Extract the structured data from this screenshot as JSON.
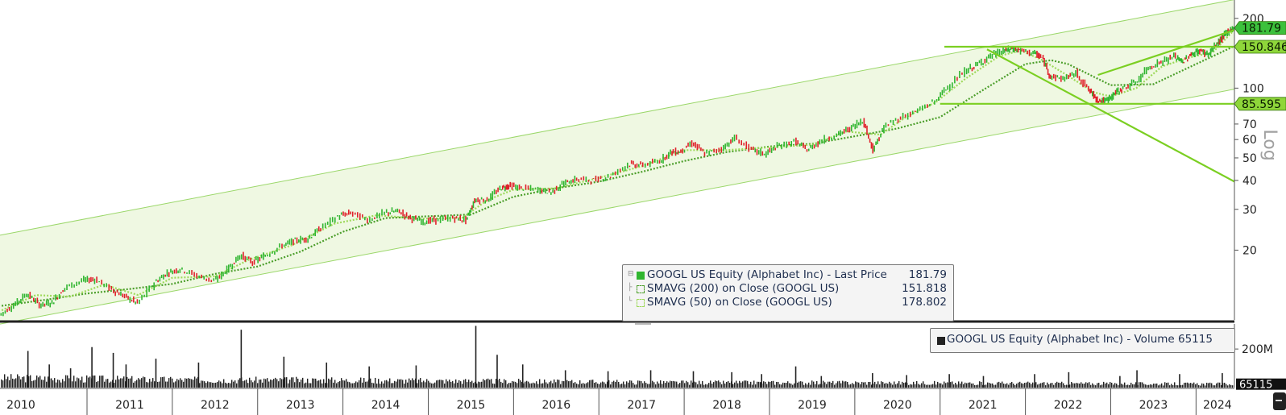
{
  "chart_data": {
    "type": "line",
    "scale": "log",
    "ylim": [
      10,
      240
    ],
    "y_ticks": [
      "200",
      "100",
      "70",
      "60",
      "50",
      "40",
      "30",
      "20"
    ],
    "y_tick_values": [
      200,
      100,
      70,
      60,
      50,
      40,
      30,
      20
    ],
    "axis_label": "Log",
    "x_ticks": [
      "2010",
      "2011",
      "2012",
      "2013",
      "2014",
      "2015",
      "2016",
      "2017",
      "2018",
      "2019",
      "2020",
      "2021",
      "2022",
      "2023",
      "2024"
    ],
    "x_range": [
      2009.98,
      2024.45
    ],
    "series": [
      {
        "name": "GOOGL US Equity (Alphabet Inc) - Last Price",
        "color": "#2fb52f",
        "points": [
          [
            2009.98,
            10.5
          ],
          [
            2010.15,
            11.6
          ],
          [
            2010.3,
            13.0
          ],
          [
            2010.45,
            11.6
          ],
          [
            2010.6,
            11.9
          ],
          [
            2010.75,
            13.8
          ],
          [
            2010.95,
            14.8
          ],
          [
            2011.1,
            15.0
          ],
          [
            2011.3,
            13.5
          ],
          [
            2011.45,
            12.6
          ],
          [
            2011.6,
            11.8
          ],
          [
            2011.8,
            14.5
          ],
          [
            2011.95,
            16.0
          ],
          [
            2012.1,
            16.6
          ],
          [
            2012.3,
            15.5
          ],
          [
            2012.5,
            14.7
          ],
          [
            2012.65,
            16.5
          ],
          [
            2012.8,
            19.0
          ],
          [
            2012.95,
            17.7
          ],
          [
            2013.1,
            19.0
          ],
          [
            2013.3,
            21.0
          ],
          [
            2013.45,
            22.0
          ],
          [
            2013.6,
            22.5
          ],
          [
            2013.75,
            25.0
          ],
          [
            2013.95,
            28.0
          ],
          [
            2014.1,
            29.0
          ],
          [
            2014.3,
            27.0
          ],
          [
            2014.5,
            29.0
          ],
          [
            2014.65,
            29.5
          ],
          [
            2014.8,
            27.5
          ],
          [
            2014.95,
            26.5
          ],
          [
            2015.1,
            27.0
          ],
          [
            2015.3,
            27.5
          ],
          [
            2015.45,
            27.0
          ],
          [
            2015.55,
            33.0
          ],
          [
            2015.7,
            33.0
          ],
          [
            2015.85,
            37.0
          ],
          [
            2015.95,
            38.0
          ],
          [
            2016.1,
            37.0
          ],
          [
            2016.3,
            36.5
          ],
          [
            2016.45,
            35.5
          ],
          [
            2016.6,
            39.0
          ],
          [
            2016.75,
            40.5
          ],
          [
            2016.95,
            40.0
          ],
          [
            2017.15,
            42.0
          ],
          [
            2017.35,
            47.0
          ],
          [
            2017.5,
            46.5
          ],
          [
            2017.7,
            48.0
          ],
          [
            2017.85,
            53.0
          ],
          [
            2017.95,
            53.0
          ],
          [
            2018.1,
            58.0
          ],
          [
            2018.25,
            52.0
          ],
          [
            2018.45,
            55.0
          ],
          [
            2018.6,
            61.0
          ],
          [
            2018.8,
            54.0
          ],
          [
            2018.95,
            52.0
          ],
          [
            2019.1,
            56.0
          ],
          [
            2019.3,
            59.0
          ],
          [
            2019.45,
            54.0
          ],
          [
            2019.6,
            59.0
          ],
          [
            2019.8,
            63.0
          ],
          [
            2019.95,
            67.0
          ],
          [
            2020.1,
            73.0
          ],
          [
            2020.22,
            54.0
          ],
          [
            2020.35,
            68.0
          ],
          [
            2020.55,
            75.0
          ],
          [
            2020.75,
            80.0
          ],
          [
            2020.95,
            88.0
          ],
          [
            2021.1,
            102.0
          ],
          [
            2021.3,
            118.0
          ],
          [
            2021.45,
            127.0
          ],
          [
            2021.6,
            138.0
          ],
          [
            2021.75,
            145.0
          ],
          [
            2021.85,
            148.0
          ],
          [
            2021.95,
            145.0
          ],
          [
            2022.1,
            142.0
          ],
          [
            2022.2,
            135.0
          ],
          [
            2022.3,
            112.0
          ],
          [
            2022.45,
            110.0
          ],
          [
            2022.6,
            116.0
          ],
          [
            2022.75,
            98.0
          ],
          [
            2022.85,
            89.0
          ],
          [
            2022.95,
            88.0
          ],
          [
            2023.05,
            95.0
          ],
          [
            2023.15,
            100.0
          ],
          [
            2023.3,
            106.0
          ],
          [
            2023.45,
            123.0
          ],
          [
            2023.6,
            130.0
          ],
          [
            2023.75,
            137.0
          ],
          [
            2023.85,
            130.0
          ],
          [
            2023.95,
            140.0
          ],
          [
            2024.05,
            145.0
          ],
          [
            2024.15,
            140.0
          ],
          [
            2024.25,
            155.0
          ],
          [
            2024.32,
            166.0
          ],
          [
            2024.38,
            177.0
          ],
          [
            2024.45,
            181.79
          ]
        ]
      },
      {
        "name": "SMAVG (200) on Close (GOOGL US)",
        "color": "#4b9e2a",
        "points": [
          [
            2010.0,
            11.5
          ],
          [
            2010.5,
            12.2
          ],
          [
            2011.0,
            13.0
          ],
          [
            2011.5,
            13.6
          ],
          [
            2012.0,
            14.3
          ],
          [
            2012.5,
            15.8
          ],
          [
            2013.0,
            17.0
          ],
          [
            2013.5,
            19.7
          ],
          [
            2014.0,
            24.0
          ],
          [
            2014.5,
            27.5
          ],
          [
            2015.0,
            28.0
          ],
          [
            2015.5,
            28.5
          ],
          [
            2016.0,
            34.0
          ],
          [
            2016.5,
            37.0
          ],
          [
            2017.0,
            39.5
          ],
          [
            2017.5,
            43.5
          ],
          [
            2018.0,
            48.5
          ],
          [
            2018.5,
            53.0
          ],
          [
            2019.0,
            56.0
          ],
          [
            2019.5,
            57.5
          ],
          [
            2020.0,
            62.0
          ],
          [
            2020.5,
            67.0
          ],
          [
            2021.0,
            75.0
          ],
          [
            2021.5,
            98.0
          ],
          [
            2022.0,
            127.0
          ],
          [
            2022.3,
            132.0
          ],
          [
            2022.5,
            127.0
          ],
          [
            2022.8,
            112.0
          ],
          [
            2023.0,
            103.0
          ],
          [
            2023.5,
            104.0
          ],
          [
            2024.0,
            127.0
          ],
          [
            2024.45,
            151.818
          ]
        ]
      },
      {
        "name": "SMAVG (50) on Close (GOOGL US)",
        "color": "#9ed95a",
        "points": [
          [
            2010.0,
            11.0
          ],
          [
            2010.4,
            12.8
          ],
          [
            2010.8,
            12.6
          ],
          [
            2011.2,
            14.2
          ],
          [
            2011.6,
            12.8
          ],
          [
            2012.0,
            15.2
          ],
          [
            2012.5,
            15.4
          ],
          [
            2012.9,
            18.2
          ],
          [
            2013.4,
            21.0
          ],
          [
            2013.9,
            26.0
          ],
          [
            2014.4,
            28.3
          ],
          [
            2014.9,
            27.3
          ],
          [
            2015.4,
            27.6
          ],
          [
            2015.7,
            33.0
          ],
          [
            2016.0,
            36.5
          ],
          [
            2016.5,
            37.0
          ],
          [
            2017.0,
            41.0
          ],
          [
            2017.5,
            46.0
          ],
          [
            2018.0,
            54.0
          ],
          [
            2018.5,
            54.0
          ],
          [
            2019.0,
            55.5
          ],
          [
            2019.5,
            57.0
          ],
          [
            2019.9,
            65.0
          ],
          [
            2020.3,
            63.0
          ],
          [
            2020.6,
            75.0
          ],
          [
            2020.95,
            87.0
          ],
          [
            2021.3,
            110.0
          ],
          [
            2021.7,
            138.0
          ],
          [
            2021.95,
            145.0
          ],
          [
            2022.2,
            132.0
          ],
          [
            2022.5,
            113.0
          ],
          [
            2022.8,
            96.0
          ],
          [
            2023.0,
            92.0
          ],
          [
            2023.3,
            100.0
          ],
          [
            2023.6,
            124.0
          ],
          [
            2023.9,
            135.0
          ],
          [
            2024.2,
            143.0
          ],
          [
            2024.45,
            178.802
          ]
        ]
      }
    ],
    "channel": {
      "upper": [
        [
          2009.98,
          23.2
        ],
        [
          2024.45,
          241.0
        ]
      ],
      "lower": [
        [
          2009.98,
          9.6
        ],
        [
          2024.45,
          99.0
        ]
      ]
    },
    "trendlines": [
      {
        "from": [
          2021.55,
          147.0
        ],
        "to": [
          2024.45,
          39.5
        ]
      },
      {
        "from": [
          2022.85,
          114.0
        ],
        "to": [
          2024.45,
          178.0
        ]
      }
    ],
    "horizontal_levels": [
      {
        "value": 150.846,
        "label": "150.846",
        "start_x": 2021.05
      },
      {
        "value": 85.595,
        "label": "85.595",
        "start_x": 2021.0
      }
    ],
    "last_price_label": "181.79",
    "legend": {
      "placement": "bottom-center",
      "rows": [
        {
          "label": "GOOGL US Equity (Alphabet Inc) - Last Price",
          "value": "181.79"
        },
        {
          "label": "SMAVG (200)  on Close (GOOGL US)",
          "value": "151.818"
        },
        {
          "label": "SMAVG (50)  on Close (GOOGL US)",
          "value": "178.802"
        }
      ]
    },
    "volume": {
      "name": "GOOGL US Equity (Alphabet Inc) - Volume",
      "legend": "GOOGL US Equity (Alphabet Inc) - Volume 65115",
      "y_tick": "200M",
      "y_tick_value": 200,
      "last_label": "65115",
      "ylim": [
        0,
        330
      ],
      "typical": [
        [
          2010,
          50
        ],
        [
          2012,
          40
        ],
        [
          2014,
          38
        ],
        [
          2016,
          32
        ],
        [
          2018,
          26
        ],
        [
          2020,
          25
        ],
        [
          2022,
          22
        ],
        [
          2024.45,
          18
        ]
      ],
      "spikes": [
        [
          2010.3,
          190
        ],
        [
          2010.55,
          120
        ],
        [
          2010.8,
          100
        ],
        [
          2011.05,
          210
        ],
        [
          2011.3,
          180
        ],
        [
          2011.45,
          120
        ],
        [
          2011.8,
          150
        ],
        [
          2012.3,
          130
        ],
        [
          2012.8,
          300
        ],
        [
          2013.3,
          160
        ],
        [
          2013.8,
          130
        ],
        [
          2014.3,
          110
        ],
        [
          2014.85,
          115
        ],
        [
          2015.55,
          320
        ],
        [
          2015.8,
          170
        ],
        [
          2016.1,
          120
        ],
        [
          2016.6,
          90
        ],
        [
          2017.1,
          85
        ],
        [
          2017.6,
          90
        ],
        [
          2018.1,
          85
        ],
        [
          2018.55,
          80
        ],
        [
          2018.9,
          70
        ],
        [
          2019.3,
          110
        ],
        [
          2019.6,
          60
        ],
        [
          2020.2,
          75
        ],
        [
          2020.6,
          65
        ],
        [
          2021.1,
          70
        ],
        [
          2021.5,
          60
        ],
        [
          2022.1,
          70
        ],
        [
          2022.5,
          80
        ],
        [
          2023.1,
          60
        ],
        [
          2023.3,
          90
        ],
        [
          2023.8,
          70
        ],
        [
          2024.3,
          75
        ]
      ]
    }
  }
}
